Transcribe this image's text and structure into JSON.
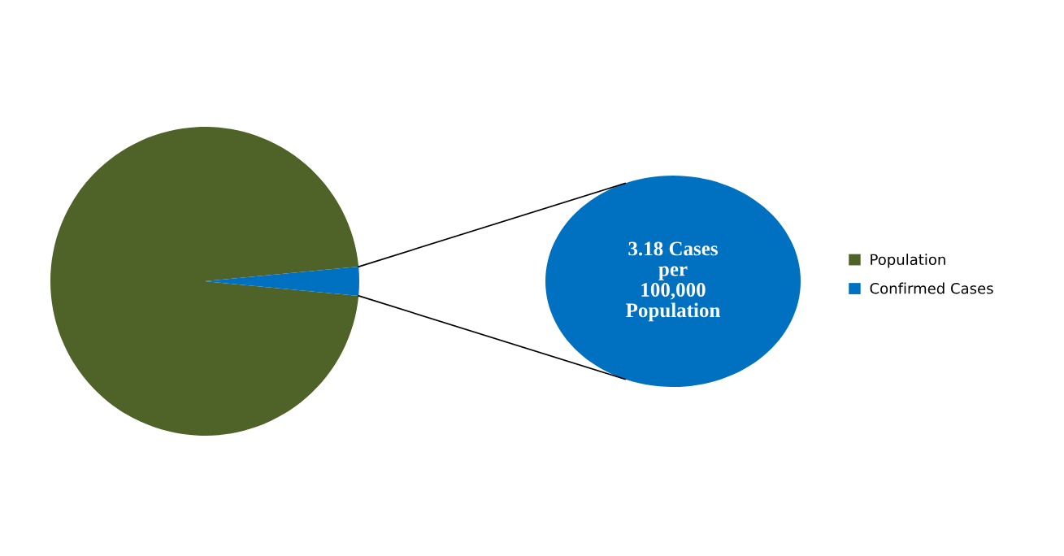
{
  "chart_data": {
    "type": "pie",
    "categories": [
      "Population",
      "Confirmed Cases"
    ],
    "values": [
      97,
      3
    ],
    "colors": [
      "#4f6228",
      "#0070c0"
    ],
    "legend": "right",
    "annotations": [
      "3.18 Cases\nper\n100,000\nPopulation"
    ]
  }
}
